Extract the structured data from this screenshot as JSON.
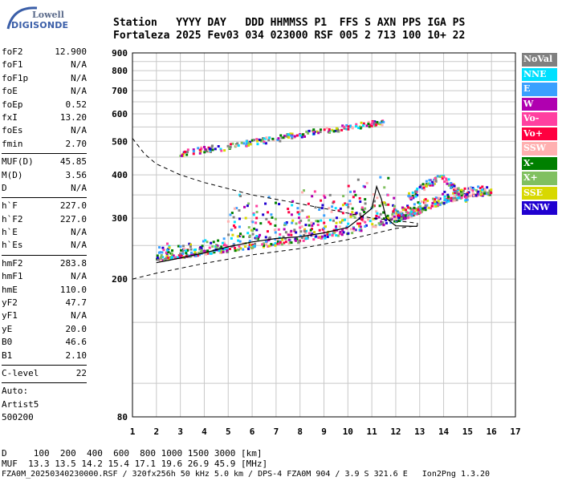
{
  "logo": {
    "line1": "Lowell",
    "line2": "DIGISONDE"
  },
  "header": {
    "line1": "Station   YYYY DAY   DDD HHMMSS P1  FFS S AXN PPS IGA PS",
    "line2": "Fortaleza 2025 Fev03 034 023000 RSF 005 2 713 100 10+ 22"
  },
  "params": [
    {
      "k": "foF2",
      "v": "12.900"
    },
    {
      "k": "foF1",
      "v": "N/A"
    },
    {
      "k": "foF1p",
      "v": "N/A"
    },
    {
      "k": "foE",
      "v": "N/A"
    },
    {
      "k": "foEp",
      "v": "0.52"
    },
    {
      "k": "fxI",
      "v": "13.20"
    },
    {
      "k": "foEs",
      "v": "N/A"
    },
    {
      "k": "fmin",
      "v": "2.70"
    },
    {
      "sep": true
    },
    {
      "k": "MUF(D)",
      "v": "45.85"
    },
    {
      "k": "M(D)",
      "v": "3.56"
    },
    {
      "k": "D",
      "v": "N/A"
    },
    {
      "sep": true
    },
    {
      "k": "h`F",
      "v": "227.0"
    },
    {
      "k": "h`F2",
      "v": "227.0"
    },
    {
      "k": "h`E",
      "v": "N/A"
    },
    {
      "k": "h`Es",
      "v": "N/A"
    },
    {
      "sep": true
    },
    {
      "k": "hmF2",
      "v": "283.8"
    },
    {
      "k": "hmF1",
      "v": "N/A"
    },
    {
      "k": "hmE",
      "v": "110.0"
    },
    {
      "k": "yF2",
      "v": "47.7"
    },
    {
      "k": "yF1",
      "v": "N/A"
    },
    {
      "k": "yE",
      "v": "20.0"
    },
    {
      "k": "B0",
      "v": "46.6"
    },
    {
      "k": "B1",
      "v": "2.10"
    },
    {
      "sep": true
    },
    {
      "k": "C-level",
      "v": "22"
    },
    {
      "sep": true
    },
    {
      "k": "Auto:",
      "v": ""
    },
    {
      "k": "Artist5",
      "v": ""
    },
    {
      "k": "500200",
      "v": ""
    }
  ],
  "legend": [
    {
      "label": "NoVal",
      "color": "#808080"
    },
    {
      "label": "NNE",
      "color": "#00e0ff"
    },
    {
      "label": "E",
      "color": "#3aa0ff"
    },
    {
      "label": "W",
      "color": "#b000b0"
    },
    {
      "label": "Vo-",
      "color": "#ff40a0"
    },
    {
      "label": "Vo+",
      "color": "#ff0040"
    },
    {
      "label": "SSW",
      "color": "#ffb0b0"
    },
    {
      "label": "X-",
      "color": "#008000"
    },
    {
      "label": "X+",
      "color": "#80c060"
    },
    {
      "label": "SSE",
      "color": "#d8d800"
    },
    {
      "label": "NNW",
      "color": "#2000d0"
    }
  ],
  "chart_data": {
    "type": "scatter",
    "xlabel": "",
    "ylabel": "",
    "xlim": [
      1,
      17
    ],
    "ylim": [
      80,
      900
    ],
    "y_scale": "log",
    "x_ticks": [
      1,
      2,
      3,
      4,
      5,
      6,
      7,
      8,
      9,
      10,
      11,
      12,
      13,
      14,
      15,
      16,
      17
    ],
    "y_ticks": [
      80,
      200,
      300,
      400,
      500,
      600,
      700,
      800,
      900
    ],
    "grid": true,
    "series": [
      {
        "name": "F-trace",
        "points": [
          [
            2,
            225
          ],
          [
            3,
            230
          ],
          [
            4,
            235
          ],
          [
            5,
            240
          ],
          [
            6,
            245
          ],
          [
            7,
            250
          ],
          [
            8,
            255
          ],
          [
            9,
            262
          ],
          [
            10,
            270
          ],
          [
            11,
            280
          ],
          [
            12,
            292
          ],
          [
            12.5,
            300
          ],
          [
            13,
            310
          ],
          [
            14,
            330
          ],
          [
            15,
            345
          ],
          [
            16,
            350
          ]
        ]
      },
      {
        "name": "2nd-hop",
        "points": [
          [
            3,
            460
          ],
          [
            4,
            470
          ],
          [
            5,
            480
          ],
          [
            6,
            495
          ],
          [
            7,
            505
          ],
          [
            8,
            520
          ],
          [
            9,
            535
          ],
          [
            10,
            545
          ],
          [
            11,
            560
          ],
          [
            11.5,
            565
          ]
        ]
      },
      {
        "name": "spread-F",
        "points": [
          [
            12.5,
            340
          ],
          [
            13,
            360
          ],
          [
            13.5,
            380
          ],
          [
            14,
            390
          ],
          [
            14.5,
            360
          ],
          [
            15,
            340
          ]
        ]
      }
    ],
    "dashed_curve": [
      [
        1,
        510
      ],
      [
        1.5,
        460
      ],
      [
        2,
        430
      ],
      [
        3,
        400
      ],
      [
        4,
        380
      ],
      [
        5,
        365
      ],
      [
        6,
        350
      ],
      [
        7,
        340
      ],
      [
        8,
        330
      ],
      [
        9,
        320
      ],
      [
        10,
        310
      ],
      [
        11,
        300
      ],
      [
        12,
        295
      ],
      [
        12.9,
        290
      ],
      [
        12.9,
        285
      ],
      [
        12,
        280
      ],
      [
        10,
        260
      ],
      [
        8,
        245
      ],
      [
        6,
        235
      ],
      [
        4,
        222
      ],
      [
        2,
        208
      ],
      [
        1,
        200
      ]
    ],
    "profile_curve": [
      [
        2,
        223
      ],
      [
        3,
        230
      ],
      [
        4,
        238
      ],
      [
        5,
        248
      ],
      [
        6,
        256
      ],
      [
        7,
        262
      ],
      [
        8,
        265
      ],
      [
        9,
        272
      ],
      [
        10,
        282
      ],
      [
        10.5,
        300
      ],
      [
        11,
        320
      ],
      [
        11.2,
        370
      ],
      [
        11.4,
        340
      ],
      [
        11.6,
        300
      ],
      [
        12,
        285
      ],
      [
        12.9,
        284
      ]
    ]
  },
  "footer": {
    "dist": "D     100  200  400  600  800 1000 1500 3000 [km]",
    "muf": "MUF  13.3 13.5 14.2 15.4 17.1 19.6 26.9 45.9 [MHz]",
    "file": "FZA0M_20250340230000.RSF / 320fx256h 50 kHz 5.0 km / DPS-4 FZA0M 904 / 3.9 S 321.6 E   Ion2Png 1.3.20"
  }
}
